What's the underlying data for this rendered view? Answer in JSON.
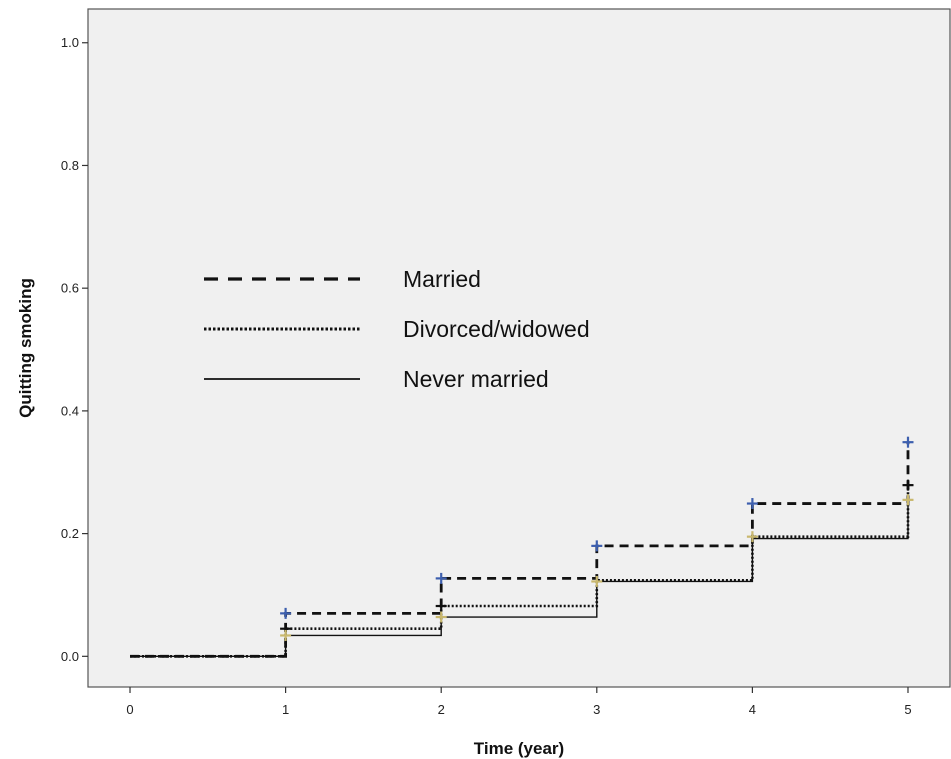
{
  "chart_data": {
    "type": "line",
    "title": "",
    "xlabel": "Time (year)",
    "ylabel": "Quitting smoking",
    "xlim": [
      -0.27,
      5.27
    ],
    "ylim": [
      -0.05,
      1.055
    ],
    "x_ticks": [
      "0",
      "1",
      "2",
      "3",
      "4",
      "5"
    ],
    "y_ticks": [
      "0.0",
      "0.2",
      "0.4",
      "0.6",
      "0.8",
      "1.0"
    ],
    "grid": false,
    "legend_position": "center-left",
    "series": [
      {
        "name": "Married",
        "style": "dashed",
        "x": [
          0,
          1,
          2,
          3,
          4,
          5
        ],
        "y": [
          0.0,
          0.07,
          0.127,
          0.18,
          0.249,
          0.349
        ],
        "end_y": 0.249
      },
      {
        "name": "Divorced/widowed",
        "style": "dotted",
        "x": [
          0,
          1,
          2,
          3,
          4,
          5
        ],
        "y": [
          0.0,
          0.045,
          0.082,
          0.124,
          0.195,
          0.279
        ],
        "end_y": 0.195
      },
      {
        "name": "Never married",
        "style": "solid",
        "x": [
          0,
          1,
          2,
          3,
          4,
          5
        ],
        "y": [
          0.0,
          0.034,
          0.064,
          0.122,
          0.192,
          0.255
        ],
        "end_y": 0.192
      }
    ],
    "censor_marks": [
      {
        "x": 1,
        "y": 0.07,
        "color": "#3d5fae"
      },
      {
        "x": 1,
        "y": 0.045,
        "color": "#111111"
      },
      {
        "x": 1,
        "y": 0.034,
        "color": "#c9b86e"
      },
      {
        "x": 2,
        "y": 0.127,
        "color": "#3d5fae"
      },
      {
        "x": 2,
        "y": 0.082,
        "color": "#111111"
      },
      {
        "x": 2,
        "y": 0.064,
        "color": "#c9b86e"
      },
      {
        "x": 3,
        "y": 0.18,
        "color": "#3d5fae"
      },
      {
        "x": 3,
        "y": 0.122,
        "color": "#c9b86e"
      },
      {
        "x": 4,
        "y": 0.249,
        "color": "#3d5fae"
      },
      {
        "x": 4,
        "y": 0.195,
        "color": "#c9b86e"
      },
      {
        "x": 5,
        "y": 0.349,
        "color": "#3d5fae"
      },
      {
        "x": 5,
        "y": 0.279,
        "color": "#111111"
      },
      {
        "x": 5,
        "y": 0.255,
        "color": "#c9b86e"
      }
    ],
    "colors": {
      "plot_background": "#f0f0f0",
      "line": "#111111"
    }
  }
}
